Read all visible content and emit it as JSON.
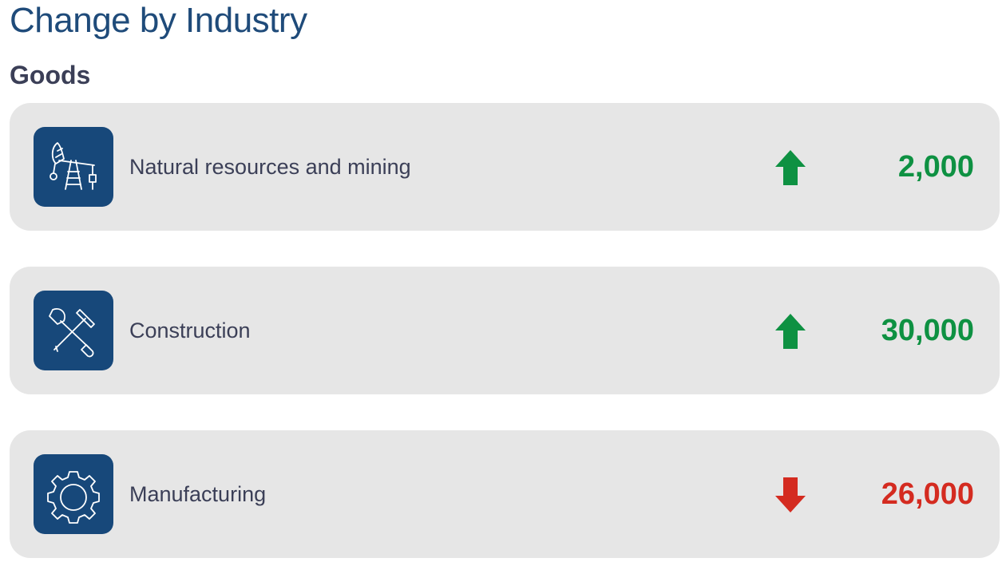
{
  "header": {
    "title": "Change by Industry",
    "section": "Goods"
  },
  "colors": {
    "increase": "#0e9142",
    "decrease": "#d42b20",
    "icon_bg": "#17487a",
    "card_bg": "#e6e6e6"
  },
  "industries": [
    {
      "label": "Natural resources and mining",
      "icon": "oil-pump-icon",
      "direction": "up",
      "value": "2,000"
    },
    {
      "label": "Construction",
      "icon": "shovel-pickaxe-icon",
      "direction": "up",
      "value": "30,000"
    },
    {
      "label": "Manufacturing",
      "icon": "gear-icon",
      "direction": "down",
      "value": "26,000"
    }
  ]
}
